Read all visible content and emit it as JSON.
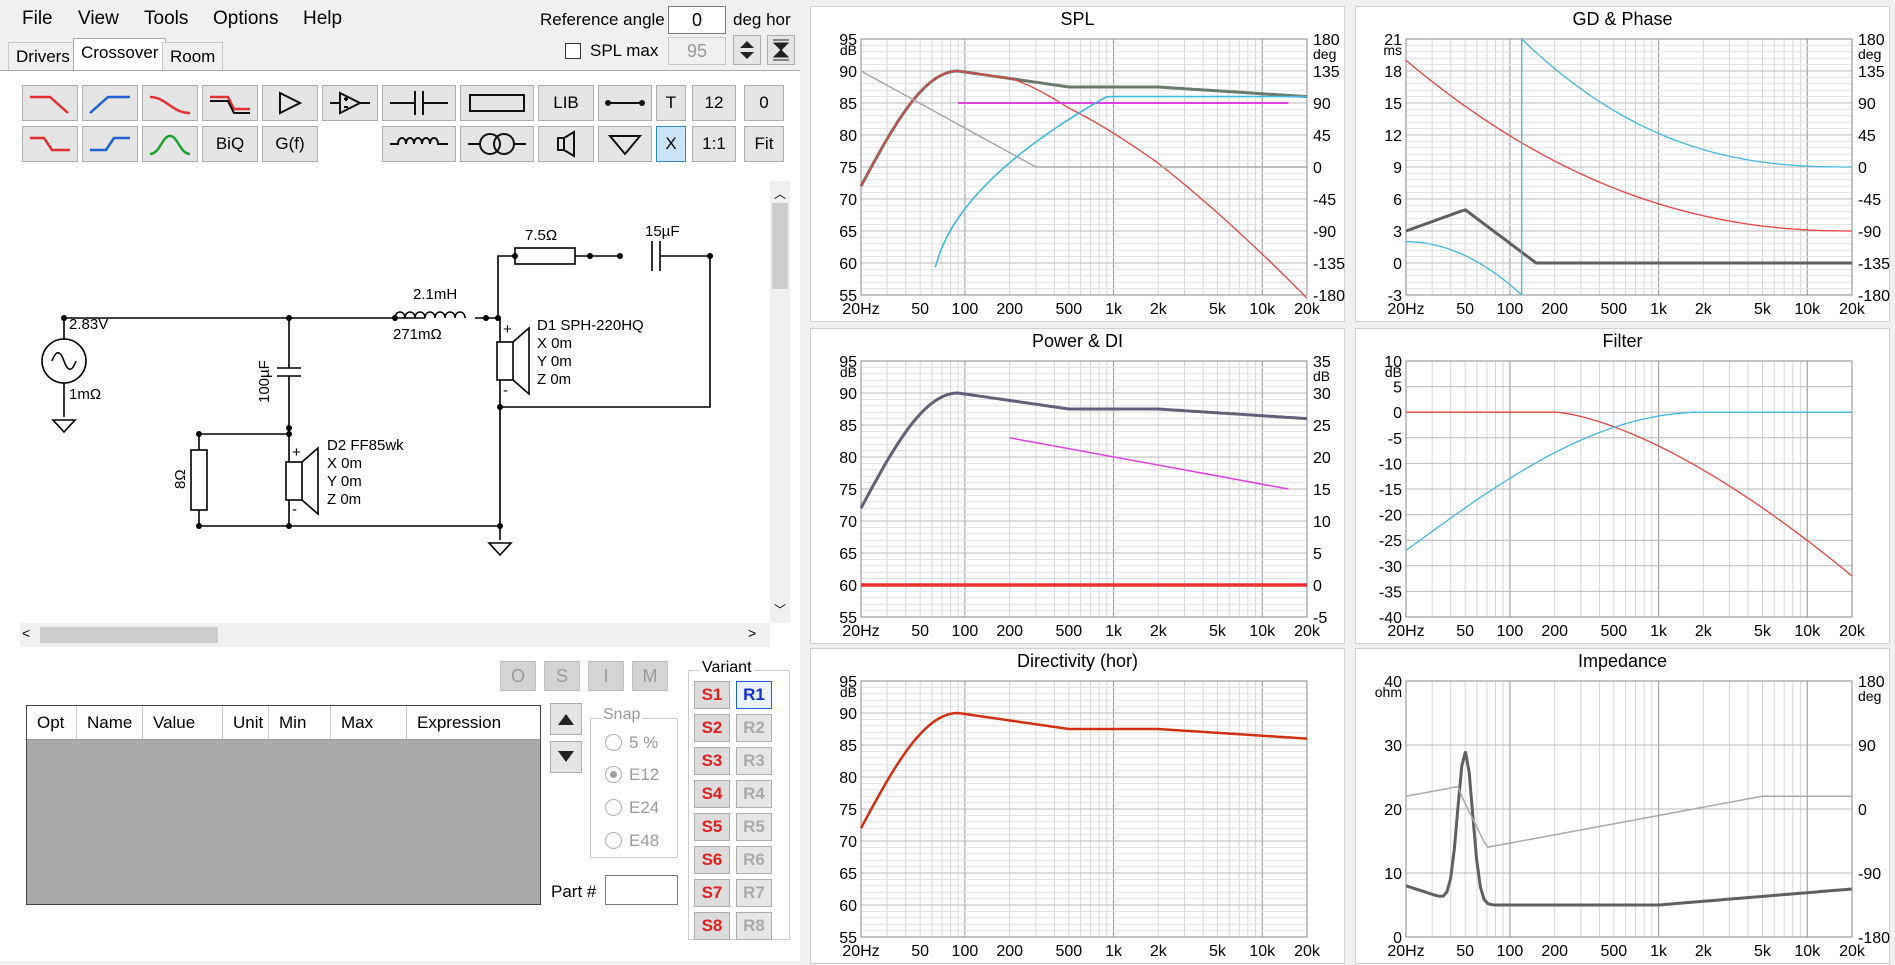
{
  "menu": [
    "File",
    "View",
    "Tools",
    "Options",
    "Help"
  ],
  "reference_angle": {
    "label": "Reference angle",
    "value": "0",
    "unit": "deg hor"
  },
  "spl_max": {
    "label": "SPL max",
    "value": "95"
  },
  "tabs": [
    "Drivers",
    "Crossover",
    "Room"
  ],
  "toolbar": {
    "lib": "LIB",
    "t": "T",
    "t_value": "12",
    "t_value2": "0",
    "biq": "BiQ",
    "gf": "G(f)",
    "x": "X",
    "ratio": "1:1",
    "fit": "Fit"
  },
  "schematic": {
    "source_voltage": "2.83V",
    "source_res": "1mΩ",
    "r1": "7.5Ω",
    "c1": "15µF",
    "l1": "2.1mH",
    "l1_res": "271mΩ",
    "c2": "100µF",
    "r2": "8Ω",
    "d1": {
      "name": "D1 SPH-220HQ",
      "x": "X 0m",
      "y": "Y 0m",
      "z": "Z 0m"
    },
    "d2": {
      "name": "D2 FF85wk",
      "x": "X 0m",
      "y": "Y 0m",
      "z": "Z 0m"
    }
  },
  "opt_buttons": [
    "O",
    "S",
    "I",
    "M"
  ],
  "table": {
    "columns": [
      "Opt",
      "Name",
      "Value",
      "Unit",
      "Min",
      "Max",
      "Expression"
    ]
  },
  "snap": {
    "label": "Snap",
    "options": [
      "5 %",
      "E12",
      "E24",
      "E48"
    ],
    "selected": "E12"
  },
  "part": {
    "label": "Part #"
  },
  "variant": {
    "label": "Variant",
    "s": [
      "S1",
      "S2",
      "S3",
      "S4",
      "S5",
      "S6",
      "S7",
      "S8"
    ],
    "r": [
      "R1",
      "R2",
      "R3",
      "R4",
      "R5",
      "R6",
      "R7",
      "R8"
    ]
  },
  "colors": {
    "spl": "#707070",
    "phase_red": "#e84040",
    "phase_blue": "#40b8e0",
    "magenta": "#e040e0",
    "grid": "#c8c8c8"
  },
  "panels": {
    "spl": {
      "title": "SPL",
      "lunit": "dB",
      "runit": "deg",
      "left": [
        "95",
        "90",
        "85",
        "80",
        "75",
        "70",
        "65",
        "60",
        "55"
      ],
      "right": [
        "180",
        "135",
        "90",
        "45",
        "0",
        "-45",
        "-90",
        "-135",
        "-180"
      ]
    },
    "gd": {
      "title": "GD & Phase",
      "lunit": "ms",
      "runit": "deg",
      "left": [
        "21",
        "18",
        "15",
        "12",
        "9",
        "6",
        "3",
        "0",
        "-3"
      ],
      "right": [
        "180",
        "135",
        "90",
        "45",
        "0",
        "-45",
        "-90",
        "-135",
        "-180"
      ]
    },
    "power": {
      "title": "Power & DI",
      "lunit": "dB",
      "runit": "dB",
      "left": [
        "95",
        "90",
        "85",
        "80",
        "75",
        "70",
        "65",
        "60",
        "55"
      ],
      "right": [
        "35",
        "30",
        "25",
        "20",
        "15",
        "10",
        "5",
        "0",
        "-5"
      ]
    },
    "filter": {
      "title": "Filter",
      "lunit": "dB",
      "runit": "",
      "left": [
        "10",
        "5",
        "0",
        "-5",
        "-10",
        "-15",
        "-20",
        "-25",
        "-30",
        "-35",
        "-40"
      ],
      "right": []
    },
    "dir": {
      "title": "Directivity (hor)",
      "lunit": "dB",
      "runit": "",
      "left": [
        "95",
        "90",
        "85",
        "80",
        "75",
        "70",
        "65",
        "60",
        "55"
      ],
      "right": []
    },
    "imp": {
      "title": "Impedance",
      "lunit": "ohm",
      "runit": "deg",
      "left": [
        "40",
        "30",
        "20",
        "10",
        "0"
      ],
      "right": [
        "180",
        "90",
        "0",
        "-90",
        "-180"
      ]
    }
  },
  "freq_ticks": [
    "20Hz",
    "50",
    "100",
    "200",
    "500",
    "1k",
    "2k",
    "5k",
    "10k",
    "20k"
  ]
}
